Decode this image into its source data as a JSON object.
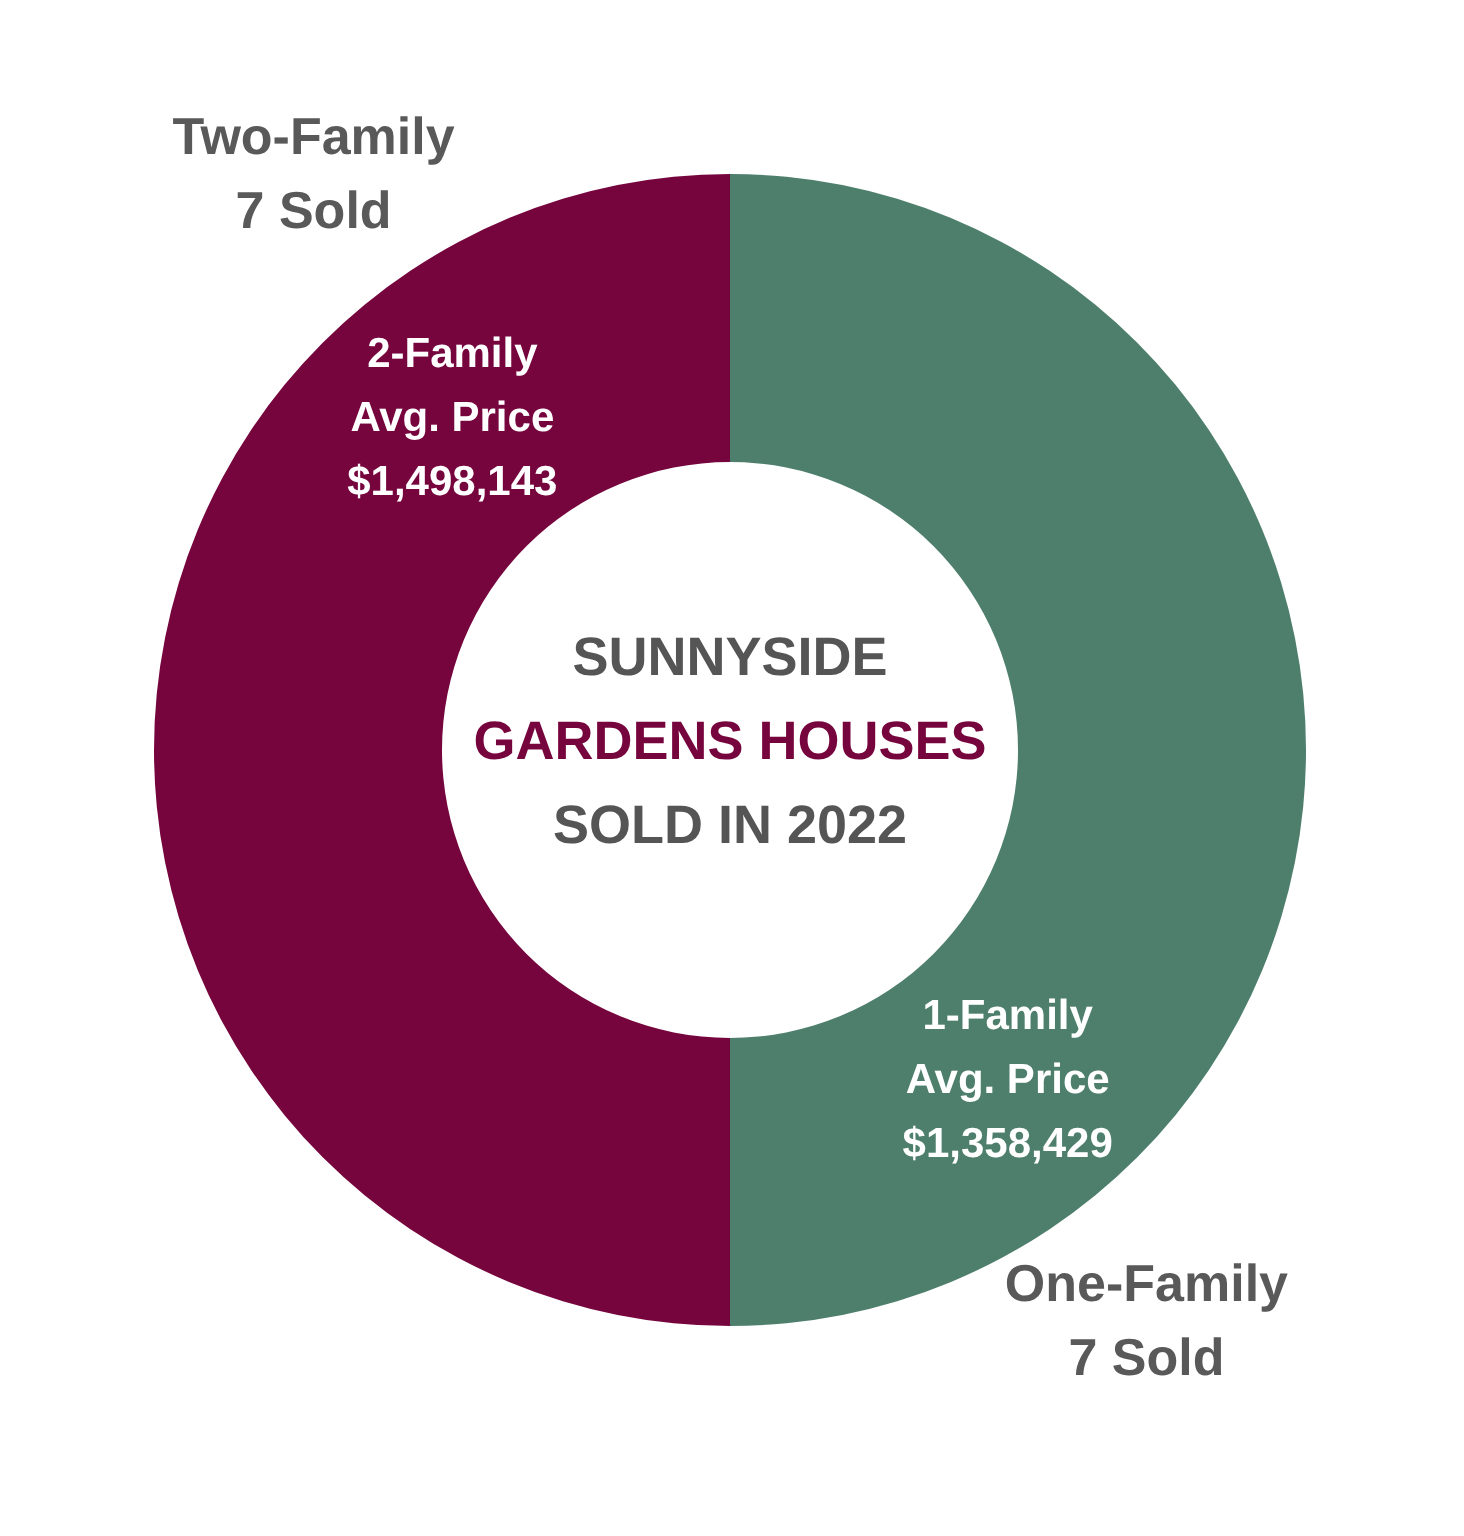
{
  "chart_data": {
    "type": "donut",
    "title": "SUNNYSIDE\nGARDENS HOUSES\nSOLD IN 2022",
    "categories": [
      "One-Family",
      "Two-Family"
    ],
    "values": [
      7,
      7
    ],
    "colors": [
      "#4e7f6d",
      "#76053e"
    ],
    "value_labels": [
      "7 Sold",
      "7 Sold"
    ],
    "annotations": [
      "1-Family\nAvg. Price\n$1,358,429",
      "2-Family\nAvg. Price\n$1,498,143"
    ]
  }
}
